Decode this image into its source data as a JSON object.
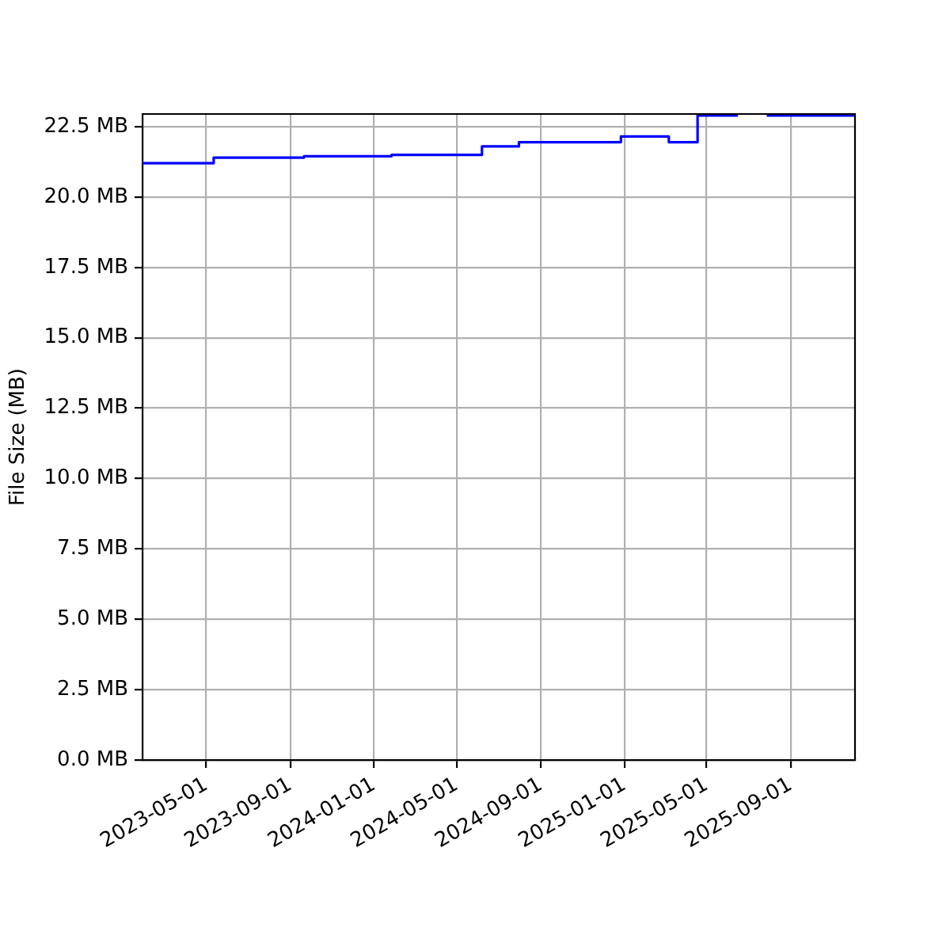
{
  "chart_data": {
    "type": "step",
    "ylabel": "File Size (MB)",
    "x": [
      "2023-01-28",
      "2023-05-12",
      "2023-09-21",
      "2024-01-27",
      "2024-06-07",
      "2024-07-31",
      "2024-12-27",
      "2025-03-07",
      "2025-04-18",
      "2025-06-16",
      "2025-06-17",
      "2025-07-28",
      "2025-12-04"
    ],
    "values": [
      21.2,
      21.4,
      21.45,
      21.5,
      21.8,
      21.95,
      22.15,
      21.95,
      22.9,
      22.9,
      null,
      22.9,
      22.9
    ],
    "color": "#0000ff",
    "xlim": [
      "2023-01-28",
      "2025-12-04"
    ],
    "xticks": [
      "2023-05-01",
      "2023-09-01",
      "2024-01-01",
      "2024-05-01",
      "2024-09-01",
      "2025-01-01",
      "2025-05-01",
      "2025-09-01"
    ],
    "ylim": [
      0,
      22.95
    ],
    "yticks": [
      {
        "value": 0,
        "label": "0.0 MB"
      },
      {
        "value": 2.5,
        "label": "2.5 MB"
      },
      {
        "value": 5,
        "label": "5.0 MB"
      },
      {
        "value": 7.5,
        "label": "7.5 MB"
      },
      {
        "value": 10,
        "label": "10.0 MB"
      },
      {
        "value": 12.5,
        "label": "12.5 MB"
      },
      {
        "value": 15,
        "label": "15.0 MB"
      },
      {
        "value": 17.5,
        "label": "17.5 MB"
      },
      {
        "value": 20,
        "label": "20.0 MB"
      },
      {
        "value": 22.5,
        "label": "22.5 MB"
      }
    ],
    "grid": true
  }
}
